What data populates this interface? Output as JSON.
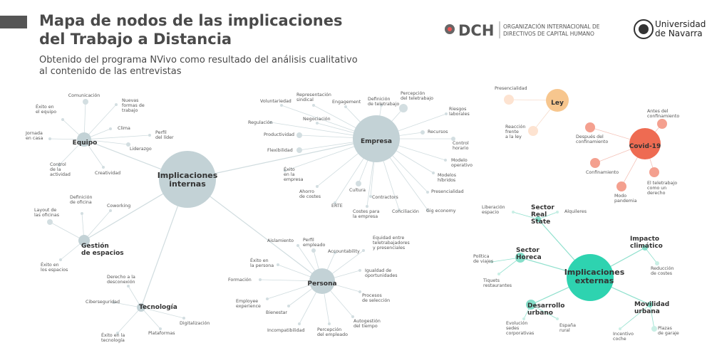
{
  "header": {
    "title": "Mapa de nodos de las implicaciones\ndel Trabajo a Distancia",
    "subtitle": "Obtenido del programa NVivo como resultado del análisis cualitativo\nal contenido de las entrevistas"
  },
  "logos": {
    "dch": "DCH",
    "dch_line_1": "ORGANIZACIÓN INTERNACIONAL DE",
    "dch_line_2": "DIRECTIVOS DE CAPITAL HUMANO",
    "unav_1": "Universidad",
    "unav_2": "de Navarra"
  },
  "internal": {
    "label": "Implicaciones\ninternas",
    "hubs": [
      {
        "label": "Equipo",
        "children": [
          "Comunicación",
          "Nuevas\nformas de\ntrabajo",
          "Éxito en\nel equipo",
          "Clima",
          "Perfil\ndel líder",
          "Liderazgo",
          "Jornada\nen casa",
          "Control\nde la\nactividad",
          "Creatividad"
        ]
      },
      {
        "label": "Empresa",
        "children": [
          "Voluntariedad",
          "Representación\nsindical",
          "Engagement",
          "Definición\nde teletrabajo",
          "Percepción\ndel teletrabajo",
          "Riesgos\nlaborales",
          "Negociación",
          "Regulación",
          "Recursos",
          "Productividad",
          "Control\nhorario",
          "Flexibilidad",
          "Modelo\noperativo",
          "Éxito\nen la\nempresa",
          "Modelos\nhíbridos",
          "Cultura",
          "Presencialidad",
          "Ahorro\nde costes",
          "Contractors",
          "ERTE",
          "Costes para\nla empresa",
          "Conciliación",
          "Gig economy"
        ]
      },
      {
        "label": "Gestión\nde espacios",
        "children": [
          "Definición\nde oficina",
          "Coworking",
          "Layout de\nlas oficinas",
          "Éxito en\nlos espacios"
        ]
      },
      {
        "label": "Tecnología",
        "children": [
          "Derecho a la\ndesconexión",
          "Ciberseguridad",
          "Digitalización",
          "Plataformas",
          "Éxito en la\ntecnología"
        ]
      },
      {
        "label": "Persona",
        "children": [
          "Aislamiento",
          "Perfil\nempleado",
          "Equidad entre\nteletrabajadores\ny presenciales",
          "Accountability",
          "Éxito en\nla persona",
          "Igualdad de\noportunidades",
          "Formación",
          "Procesos\nde selección",
          "Employee\nexperience",
          "Bienestar",
          "Autogestión\ndel tiempo",
          "Incompatibilidad",
          "Percepción\ndel empleado"
        ]
      }
    ]
  },
  "ley": {
    "label": "Ley",
    "children": [
      "Presencialidad",
      "Reacción\nfrente\na la ley"
    ]
  },
  "covid": {
    "label": "Covid-19",
    "children": [
      "Antes del\nconfinamiento",
      "Después del\nconfinamiento",
      "Confinamiento",
      "El teletrabajo\ncomo un\nderecho",
      "Modo\npandemia"
    ]
  },
  "external": {
    "label": "Implicaciones\nexternas",
    "hubs": [
      {
        "label": "Sector\nReal\nState",
        "children": [
          "Liberación\nespacio",
          "Alquileres"
        ]
      },
      {
        "label": "Impacto\nclimático",
        "children": [
          "Reducción\nde costes"
        ]
      },
      {
        "label": "Sector\nHoreca",
        "children": [
          "Política\nde viajes",
          "Tiquets\nrestaurantes"
        ]
      },
      {
        "label": "Desarrollo\nurbano",
        "children": [
          "Evolución\nsedes\ncorporativas",
          "España\nrural"
        ]
      },
      {
        "label": "Movilidad\nurbana",
        "children": [
          "Incentivo\ncoche",
          "Plazas\nde garaje"
        ]
      }
    ]
  }
}
